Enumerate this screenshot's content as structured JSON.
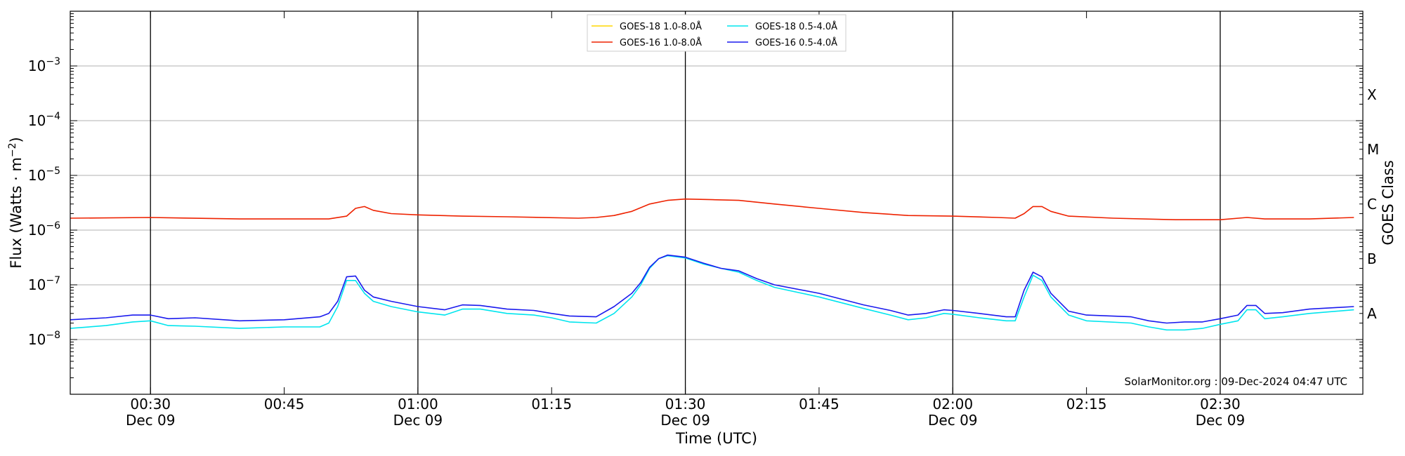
{
  "chart_data": {
    "type": "line",
    "y_scale": "log",
    "ylim": [
      1e-09,
      0.01
    ],
    "xlim": [
      "00:21",
      "02:46"
    ],
    "ylabel": "Flux (Watts · m⁻²)",
    "ylabel_base": "Flux (Watts · m",
    "ylabel_exp": "−2",
    "ylabel_close": ")",
    "xlabel": "Time (UTC)",
    "y2label": "GOES Class",
    "grid": "horizontal at decades 1e-8 .. 1e-3",
    "y_ticks": [
      {
        "value": 1e-08,
        "base": "10",
        "exp": "−8"
      },
      {
        "value": 1e-07,
        "base": "10",
        "exp": "−7"
      },
      {
        "value": 1e-06,
        "base": "10",
        "exp": "−6"
      },
      {
        "value": 1e-05,
        "base": "10",
        "exp": "−5"
      },
      {
        "value": 0.0001,
        "base": "10",
        "exp": "−4"
      },
      {
        "value": 0.001,
        "base": "10",
        "exp": "−3"
      }
    ],
    "x_ticks": [
      {
        "time": "00:30",
        "label": "00:30",
        "sublabel": "Dec 09",
        "vline": true
      },
      {
        "time": "00:45",
        "label": "00:45",
        "sublabel": "",
        "vline": false
      },
      {
        "time": "01:00",
        "label": "01:00",
        "sublabel": "Dec 09",
        "vline": true
      },
      {
        "time": "01:15",
        "label": "01:15",
        "sublabel": "",
        "vline": false
      },
      {
        "time": "01:30",
        "label": "01:30",
        "sublabel": "Dec 09",
        "vline": true
      },
      {
        "time": "01:45",
        "label": "01:45",
        "sublabel": "",
        "vline": false
      },
      {
        "time": "02:00",
        "label": "02:00",
        "sublabel": "Dec 09",
        "vline": true
      },
      {
        "time": "02:15",
        "label": "02:15",
        "sublabel": "",
        "vline": false
      },
      {
        "time": "02:30",
        "label": "02:30",
        "sublabel": "Dec 09",
        "vline": true
      }
    ],
    "goes_classes": [
      {
        "label": "X",
        "value": 0.0003
      },
      {
        "label": "M",
        "value": 3e-05
      },
      {
        "label": "C",
        "value": 3e-06
      },
      {
        "label": "B",
        "value": 3e-07
      },
      {
        "label": "A",
        "value": 3e-08
      }
    ],
    "legend_position": "top-center",
    "watermark": "SolarMonitor.org : 09-Dec-2024 04:47 UTC",
    "series": [
      {
        "name": "GOES-18 1.0-8.0Å",
        "color": "#ffd700",
        "legend_only": true,
        "points": []
      },
      {
        "name": "GOES-16 1.0-8.0Å",
        "color": "#ee2200",
        "points": [
          [
            "00:21",
            1.65e-06
          ],
          [
            "00:30",
            1.7e-06
          ],
          [
            "00:40",
            1.6e-06
          ],
          [
            "00:50",
            1.6e-06
          ],
          [
            "00:52",
            1.8e-06
          ],
          [
            "00:53",
            2.5e-06
          ],
          [
            "00:54",
            2.7e-06
          ],
          [
            "00:55",
            2.3e-06
          ],
          [
            "00:57",
            2e-06
          ],
          [
            "01:00",
            1.9e-06
          ],
          [
            "01:05",
            1.8e-06
          ],
          [
            "01:10",
            1.75e-06
          ],
          [
            "01:18",
            1.65e-06
          ],
          [
            "01:20",
            1.7e-06
          ],
          [
            "01:22",
            1.85e-06
          ],
          [
            "01:24",
            2.2e-06
          ],
          [
            "01:26",
            3e-06
          ],
          [
            "01:28",
            3.5e-06
          ],
          [
            "01:30",
            3.7e-06
          ],
          [
            "01:33",
            3.6e-06
          ],
          [
            "01:36",
            3.5e-06
          ],
          [
            "01:40",
            3e-06
          ],
          [
            "01:45",
            2.5e-06
          ],
          [
            "01:50",
            2.1e-06
          ],
          [
            "01:55",
            1.85e-06
          ],
          [
            "02:00",
            1.8e-06
          ],
          [
            "02:05",
            1.7e-06
          ],
          [
            "02:07",
            1.65e-06
          ],
          [
            "02:08",
            2e-06
          ],
          [
            "02:09",
            2.7e-06
          ],
          [
            "02:10",
            2.7e-06
          ],
          [
            "02:11",
            2.2e-06
          ],
          [
            "02:13",
            1.8e-06
          ],
          [
            "02:18",
            1.65e-06
          ],
          [
            "02:25",
            1.55e-06
          ],
          [
            "02:30",
            1.55e-06
          ],
          [
            "02:33",
            1.7e-06
          ],
          [
            "02:35",
            1.6e-06
          ],
          [
            "02:40",
            1.6e-06
          ],
          [
            "02:45",
            1.7e-06
          ]
        ]
      },
      {
        "name": "GOES-18 0.5-4.0Å",
        "color": "#00e5ee",
        "points": [
          [
            "00:21",
            1.6e-08
          ],
          [
            "00:25",
            1.8e-08
          ],
          [
            "00:28",
            2.1e-08
          ],
          [
            "00:30",
            2.2e-08
          ],
          [
            "00:32",
            1.8e-08
          ],
          [
            "00:35",
            1.75e-08
          ],
          [
            "00:40",
            1.6e-08
          ],
          [
            "00:45",
            1.7e-08
          ],
          [
            "00:49",
            1.7e-08
          ],
          [
            "00:50",
            2e-08
          ],
          [
            "00:51",
            4e-08
          ],
          [
            "00:52",
            1.2e-07
          ],
          [
            "00:53",
            1.2e-07
          ],
          [
            "00:54",
            7e-08
          ],
          [
            "00:55",
            5e-08
          ],
          [
            "00:57",
            4e-08
          ],
          [
            "01:00",
            3.2e-08
          ],
          [
            "01:03",
            2.8e-08
          ],
          [
            "01:05",
            3.6e-08
          ],
          [
            "01:07",
            3.6e-08
          ],
          [
            "01:10",
            3e-08
          ],
          [
            "01:13",
            2.8e-08
          ],
          [
            "01:15",
            2.5e-08
          ],
          [
            "01:17",
            2.1e-08
          ],
          [
            "01:20",
            2e-08
          ],
          [
            "01:22",
            3e-08
          ],
          [
            "01:24",
            6e-08
          ],
          [
            "01:25",
            1e-07
          ],
          [
            "01:26",
            2e-07
          ],
          [
            "01:27",
            3e-07
          ],
          [
            "01:28",
            3.4e-07
          ],
          [
            "01:30",
            3.1e-07
          ],
          [
            "01:32",
            2.4e-07
          ],
          [
            "01:34",
            2e-07
          ],
          [
            "01:36",
            1.7e-07
          ],
          [
            "01:38",
            1.2e-07
          ],
          [
            "01:40",
            9e-08
          ],
          [
            "01:45",
            6e-08
          ],
          [
            "01:50",
            3.7e-08
          ],
          [
            "01:53",
            2.8e-08
          ],
          [
            "01:55",
            2.3e-08
          ],
          [
            "01:57",
            2.5e-08
          ],
          [
            "01:59",
            3e-08
          ],
          [
            "02:00",
            2.9e-08
          ],
          [
            "02:03",
            2.5e-08
          ],
          [
            "02:06",
            2.2e-08
          ],
          [
            "02:07",
            2.2e-08
          ],
          [
            "02:08",
            6e-08
          ],
          [
            "02:09",
            1.5e-07
          ],
          [
            "02:10",
            1.2e-07
          ],
          [
            "02:11",
            6e-08
          ],
          [
            "02:13",
            2.8e-08
          ],
          [
            "02:15",
            2.2e-08
          ],
          [
            "02:20",
            2e-08
          ],
          [
            "02:22",
            1.7e-08
          ],
          [
            "02:24",
            1.5e-08
          ],
          [
            "02:26",
            1.5e-08
          ],
          [
            "02:28",
            1.6e-08
          ],
          [
            "02:30",
            1.9e-08
          ],
          [
            "02:32",
            2.2e-08
          ],
          [
            "02:33",
            3.5e-08
          ],
          [
            "02:34",
            3.5e-08
          ],
          [
            "02:35",
            2.4e-08
          ],
          [
            "02:37",
            2.6e-08
          ],
          [
            "02:40",
            3e-08
          ],
          [
            "02:45",
            3.5e-08
          ]
        ]
      },
      {
        "name": "GOES-16 0.5-4.0Å",
        "color": "#1a1aee",
        "points": [
          [
            "00:21",
            2.3e-08
          ],
          [
            "00:25",
            2.5e-08
          ],
          [
            "00:28",
            2.8e-08
          ],
          [
            "00:30",
            2.8e-08
          ],
          [
            "00:32",
            2.4e-08
          ],
          [
            "00:35",
            2.5e-08
          ],
          [
            "00:40",
            2.2e-08
          ],
          [
            "00:45",
            2.3e-08
          ],
          [
            "00:49",
            2.6e-08
          ],
          [
            "00:50",
            3e-08
          ],
          [
            "00:51",
            5e-08
          ],
          [
            "00:52",
            1.4e-07
          ],
          [
            "00:53",
            1.45e-07
          ],
          [
            "00:54",
            8e-08
          ],
          [
            "00:55",
            6e-08
          ],
          [
            "00:57",
            5e-08
          ],
          [
            "01:00",
            4e-08
          ],
          [
            "01:03",
            3.5e-08
          ],
          [
            "01:05",
            4.3e-08
          ],
          [
            "01:07",
            4.2e-08
          ],
          [
            "01:10",
            3.6e-08
          ],
          [
            "01:13",
            3.4e-08
          ],
          [
            "01:15",
            3e-08
          ],
          [
            "01:17",
            2.7e-08
          ],
          [
            "01:20",
            2.6e-08
          ],
          [
            "01:22",
            4e-08
          ],
          [
            "01:24",
            7e-08
          ],
          [
            "01:25",
            1.1e-07
          ],
          [
            "01:26",
            2.1e-07
          ],
          [
            "01:27",
            3e-07
          ],
          [
            "01:28",
            3.5e-07
          ],
          [
            "01:30",
            3.2e-07
          ],
          [
            "01:32",
            2.5e-07
          ],
          [
            "01:34",
            2e-07
          ],
          [
            "01:36",
            1.8e-07
          ],
          [
            "01:38",
            1.3e-07
          ],
          [
            "01:40",
            1e-07
          ],
          [
            "01:45",
            7e-08
          ],
          [
            "01:50",
            4.3e-08
          ],
          [
            "01:53",
            3.4e-08
          ],
          [
            "01:55",
            2.8e-08
          ],
          [
            "01:57",
            3e-08
          ],
          [
            "01:59",
            3.5e-08
          ],
          [
            "02:00",
            3.4e-08
          ],
          [
            "02:03",
            3e-08
          ],
          [
            "02:06",
            2.6e-08
          ],
          [
            "02:07",
            2.6e-08
          ],
          [
            "02:08",
            8e-08
          ],
          [
            "02:09",
            1.7e-07
          ],
          [
            "02:10",
            1.4e-07
          ],
          [
            "02:11",
            7e-08
          ],
          [
            "02:13",
            3.3e-08
          ],
          [
            "02:15",
            2.8e-08
          ],
          [
            "02:20",
            2.6e-08
          ],
          [
            "02:22",
            2.2e-08
          ],
          [
            "02:24",
            2e-08
          ],
          [
            "02:26",
            2.1e-08
          ],
          [
            "02:28",
            2.1e-08
          ],
          [
            "02:30",
            2.4e-08
          ],
          [
            "02:32",
            2.8e-08
          ],
          [
            "02:33",
            4.2e-08
          ],
          [
            "02:34",
            4.2e-08
          ],
          [
            "02:35",
            3e-08
          ],
          [
            "02:37",
            3.1e-08
          ],
          [
            "02:40",
            3.6e-08
          ],
          [
            "02:45",
            4e-08
          ]
        ]
      }
    ]
  }
}
